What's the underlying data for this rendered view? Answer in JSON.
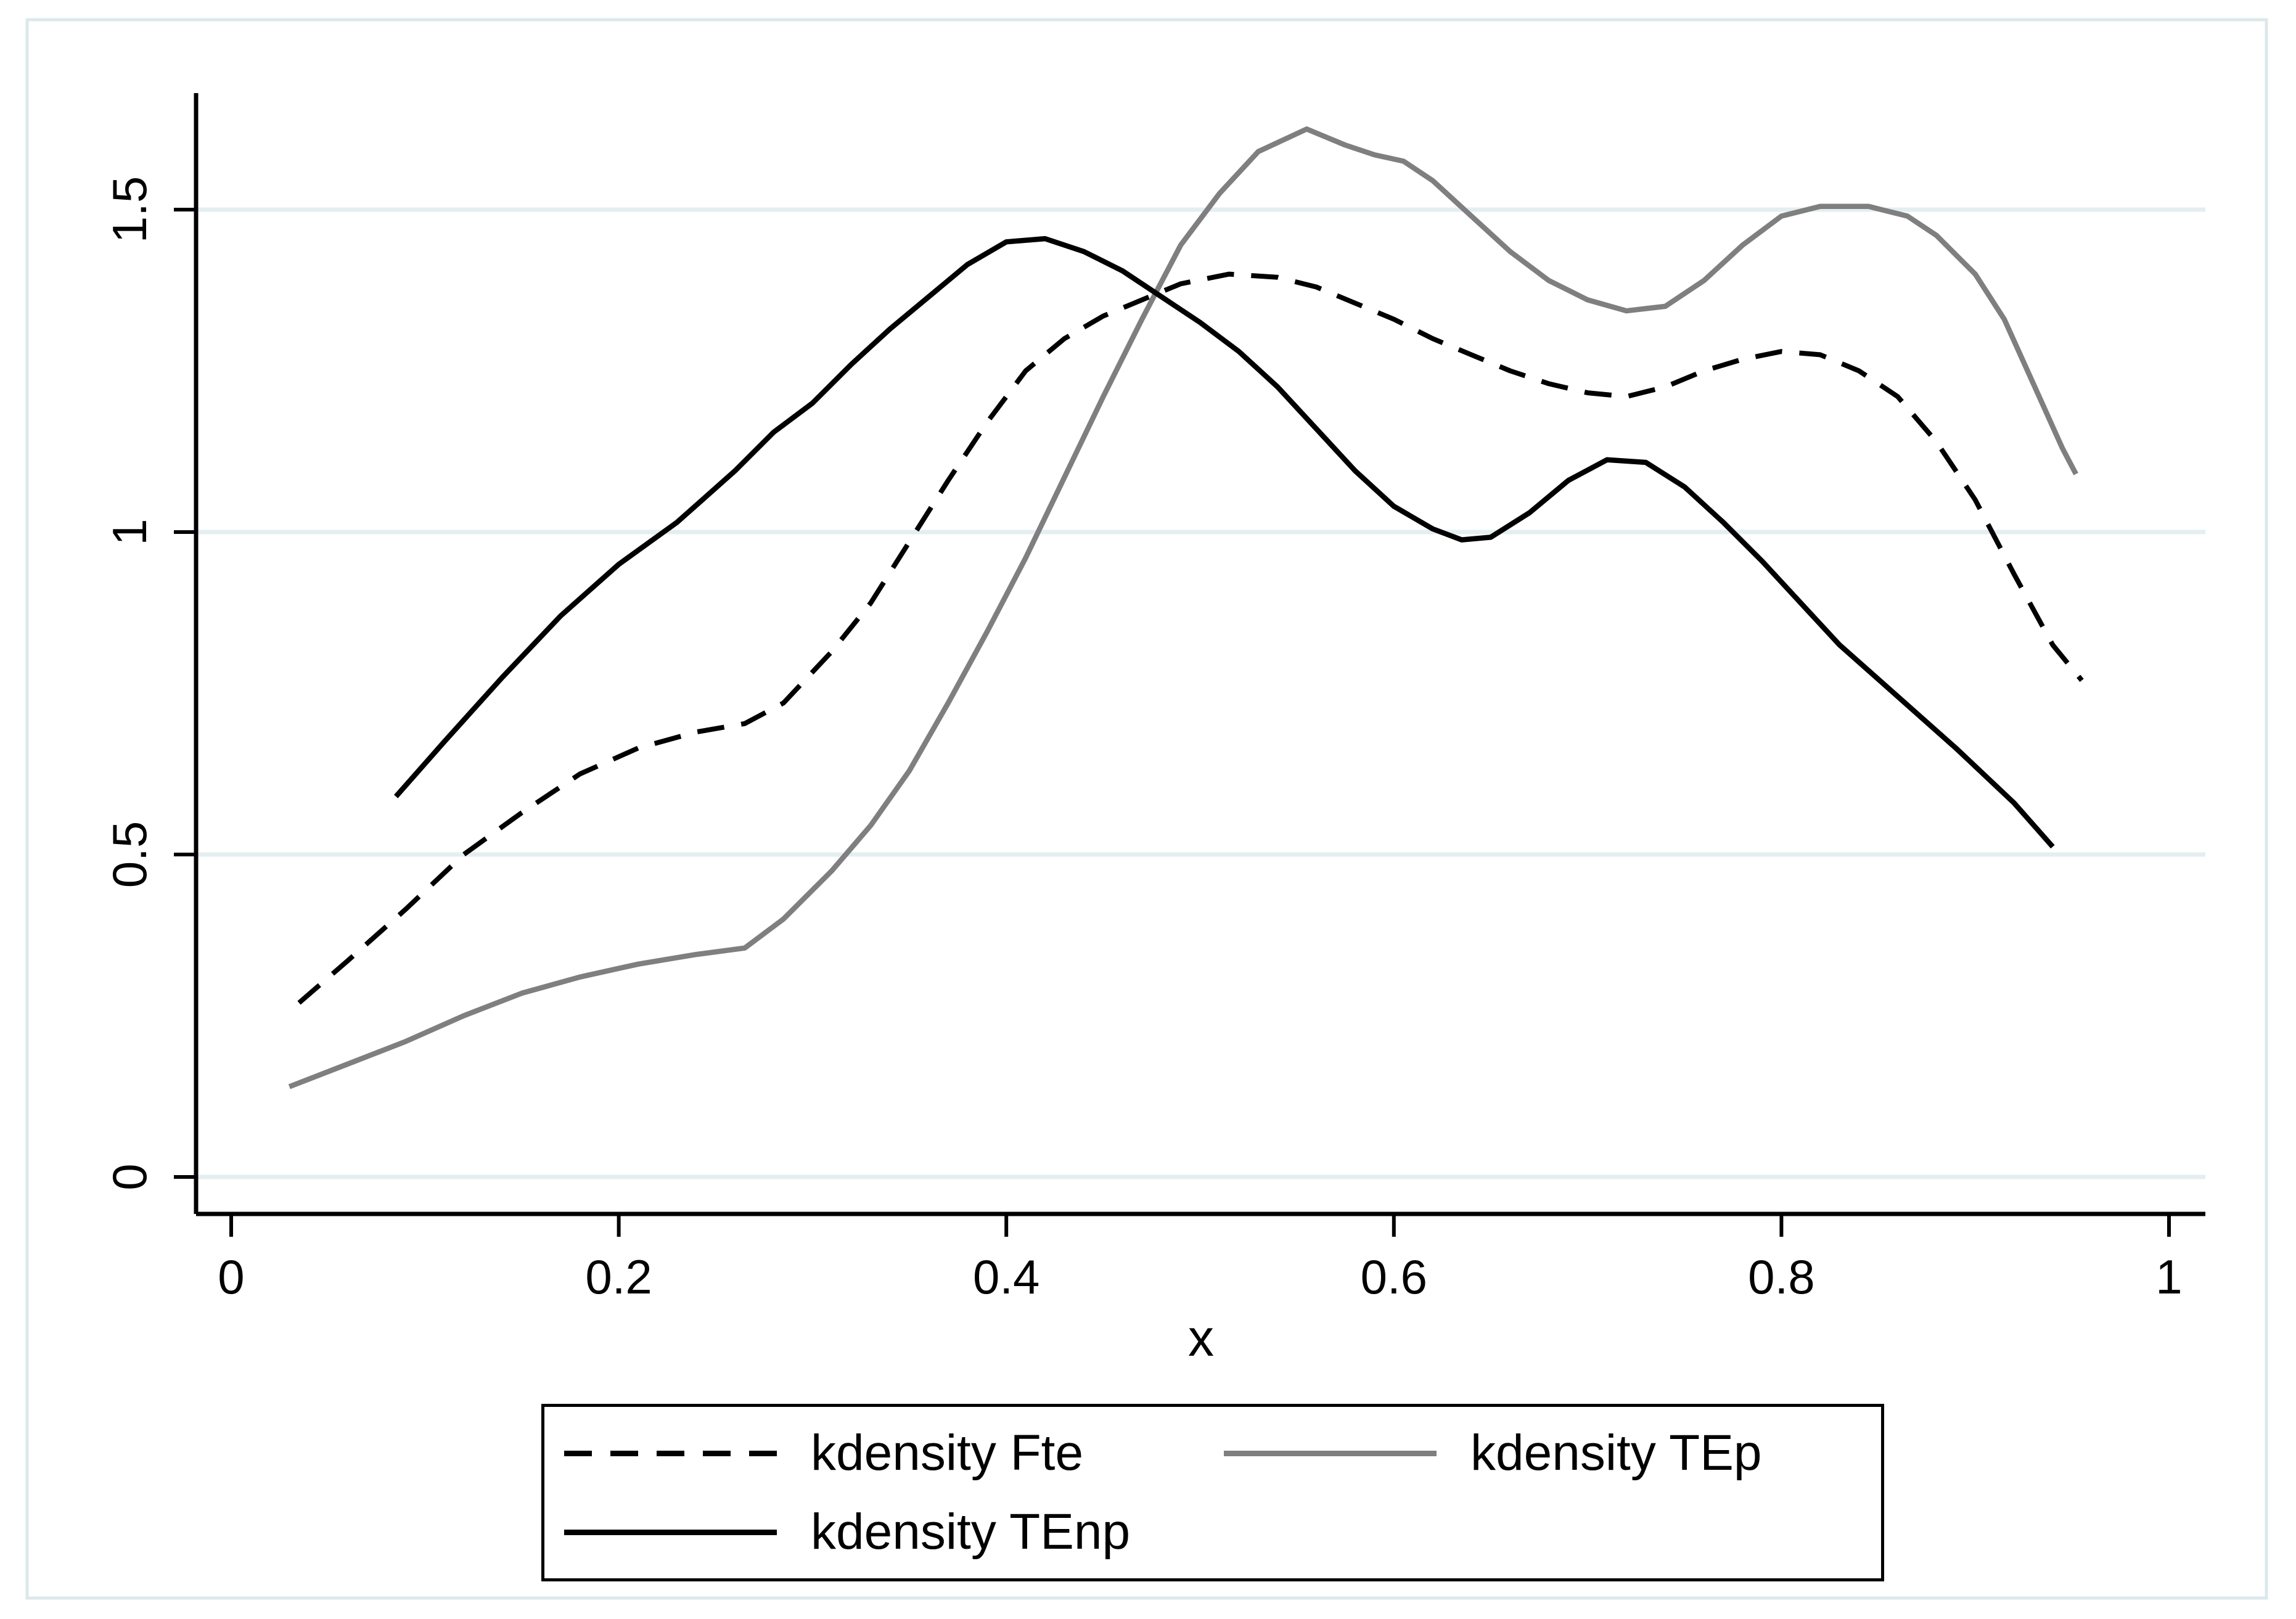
{
  "colors": {
    "black": "#000000",
    "gray": "#7f7f7f",
    "gridline": "#e4eef0",
    "frame": "#dce8eb",
    "text": "#000000"
  },
  "chart_data": {
    "type": "line",
    "title": "",
    "xlabel": "x",
    "ylabel": "",
    "xlim": [
      0,
      1
    ],
    "ylim": [
      0,
      1.5
    ],
    "grid": true,
    "legend_position": "bottom-boxed",
    "x_ticks": {
      "labels": [
        "0",
        "0.2",
        "0.4",
        "0.6",
        "0.8",
        "1"
      ],
      "values": [
        0,
        0.2,
        0.4,
        0.6,
        0.8,
        1
      ]
    },
    "y_ticks": {
      "labels": [
        "0",
        "0.5",
        "1",
        "1.5"
      ],
      "values": [
        0,
        0.5,
        1,
        1.5
      ]
    },
    "series": [
      {
        "name": "kdensity Fte",
        "color": "#000000",
        "dash": true,
        "points": [
          [
            0.035,
            0.27
          ],
          [
            0.06,
            0.335
          ],
          [
            0.09,
            0.415
          ],
          [
            0.12,
            0.5
          ],
          [
            0.15,
            0.565
          ],
          [
            0.18,
            0.625
          ],
          [
            0.21,
            0.665
          ],
          [
            0.24,
            0.69
          ],
          [
            0.265,
            0.703
          ],
          [
            0.285,
            0.735
          ],
          [
            0.31,
            0.815
          ],
          [
            0.33,
            0.89
          ],
          [
            0.35,
            0.985
          ],
          [
            0.37,
            1.08
          ],
          [
            0.39,
            1.17
          ],
          [
            0.41,
            1.25
          ],
          [
            0.43,
            1.3
          ],
          [
            0.45,
            1.335
          ],
          [
            0.47,
            1.36
          ],
          [
            0.49,
            1.385
          ],
          [
            0.515,
            1.4
          ],
          [
            0.54,
            1.395
          ],
          [
            0.56,
            1.38
          ],
          [
            0.58,
            1.355
          ],
          [
            0.6,
            1.33
          ],
          [
            0.62,
            1.3
          ],
          [
            0.64,
            1.275
          ],
          [
            0.66,
            1.25
          ],
          [
            0.68,
            1.23
          ],
          [
            0.7,
            1.216
          ],
          [
            0.72,
            1.21
          ],
          [
            0.74,
            1.225
          ],
          [
            0.76,
            1.25
          ],
          [
            0.78,
            1.268
          ],
          [
            0.8,
            1.28
          ],
          [
            0.82,
            1.275
          ],
          [
            0.84,
            1.25
          ],
          [
            0.86,
            1.21
          ],
          [
            0.88,
            1.14
          ],
          [
            0.9,
            1.05
          ],
          [
            0.92,
            0.935
          ],
          [
            0.94,
            0.825
          ],
          [
            0.955,
            0.77
          ]
        ]
      },
      {
        "name": "kdensity TEp",
        "color": "#7f7f7f",
        "dash": false,
        "points": [
          [
            0.03,
            0.14
          ],
          [
            0.06,
            0.175
          ],
          [
            0.09,
            0.21
          ],
          [
            0.12,
            0.25
          ],
          [
            0.15,
            0.285
          ],
          [
            0.18,
            0.31
          ],
          [
            0.21,
            0.33
          ],
          [
            0.24,
            0.345
          ],
          [
            0.265,
            0.355
          ],
          [
            0.285,
            0.4
          ],
          [
            0.31,
            0.475
          ],
          [
            0.33,
            0.545
          ],
          [
            0.35,
            0.63
          ],
          [
            0.37,
            0.735
          ],
          [
            0.39,
            0.845
          ],
          [
            0.41,
            0.96
          ],
          [
            0.43,
            1.085
          ],
          [
            0.45,
            1.21
          ],
          [
            0.47,
            1.33
          ],
          [
            0.49,
            1.445
          ],
          [
            0.51,
            1.525
          ],
          [
            0.53,
            1.59
          ],
          [
            0.555,
            1.625
          ],
          [
            0.575,
            1.6
          ],
          [
            0.59,
            1.585
          ],
          [
            0.605,
            1.575
          ],
          [
            0.62,
            1.545
          ],
          [
            0.64,
            1.49
          ],
          [
            0.66,
            1.435
          ],
          [
            0.68,
            1.39
          ],
          [
            0.7,
            1.36
          ],
          [
            0.72,
            1.343
          ],
          [
            0.74,
            1.35
          ],
          [
            0.76,
            1.39
          ],
          [
            0.78,
            1.445
          ],
          [
            0.8,
            1.49
          ],
          [
            0.82,
            1.505
          ],
          [
            0.845,
            1.505
          ],
          [
            0.865,
            1.49
          ],
          [
            0.88,
            1.46
          ],
          [
            0.9,
            1.4
          ],
          [
            0.915,
            1.33
          ],
          [
            0.93,
            1.23
          ],
          [
            0.945,
            1.13
          ],
          [
            0.952,
            1.09
          ]
        ]
      },
      {
        "name": "kdensity TEnp",
        "color": "#000000",
        "dash": false,
        "points": [
          [
            0.085,
            0.59
          ],
          [
            0.11,
            0.675
          ],
          [
            0.14,
            0.775
          ],
          [
            0.17,
            0.87
          ],
          [
            0.2,
            0.95
          ],
          [
            0.23,
            1.015
          ],
          [
            0.26,
            1.095
          ],
          [
            0.28,
            1.155
          ],
          [
            0.3,
            1.2
          ],
          [
            0.32,
            1.26
          ],
          [
            0.34,
            1.315
          ],
          [
            0.36,
            1.365
          ],
          [
            0.38,
            1.415
          ],
          [
            0.4,
            1.45
          ],
          [
            0.42,
            1.455
          ],
          [
            0.44,
            1.435
          ],
          [
            0.46,
            1.405
          ],
          [
            0.48,
            1.365
          ],
          [
            0.5,
            1.325
          ],
          [
            0.52,
            1.28
          ],
          [
            0.54,
            1.225
          ],
          [
            0.56,
            1.16
          ],
          [
            0.58,
            1.095
          ],
          [
            0.6,
            1.04
          ],
          [
            0.62,
            1.005
          ],
          [
            0.635,
            0.988
          ],
          [
            0.65,
            0.992
          ],
          [
            0.67,
            1.03
          ],
          [
            0.69,
            1.08
          ],
          [
            0.71,
            1.112
          ],
          [
            0.73,
            1.108
          ],
          [
            0.75,
            1.07
          ],
          [
            0.77,
            1.015
          ],
          [
            0.79,
            0.955
          ],
          [
            0.81,
            0.89
          ],
          [
            0.83,
            0.825
          ],
          [
            0.86,
            0.745
          ],
          [
            0.89,
            0.665
          ],
          [
            0.92,
            0.58
          ],
          [
            0.94,
            0.512
          ]
        ]
      }
    ]
  },
  "legend": {
    "items": [
      {
        "label": "kdensity Fte",
        "key": "dashed-black"
      },
      {
        "label": "kdensity TEp",
        "key": "solid-gray"
      },
      {
        "label": "kdensity TEnp",
        "key": "solid-black"
      }
    ]
  }
}
